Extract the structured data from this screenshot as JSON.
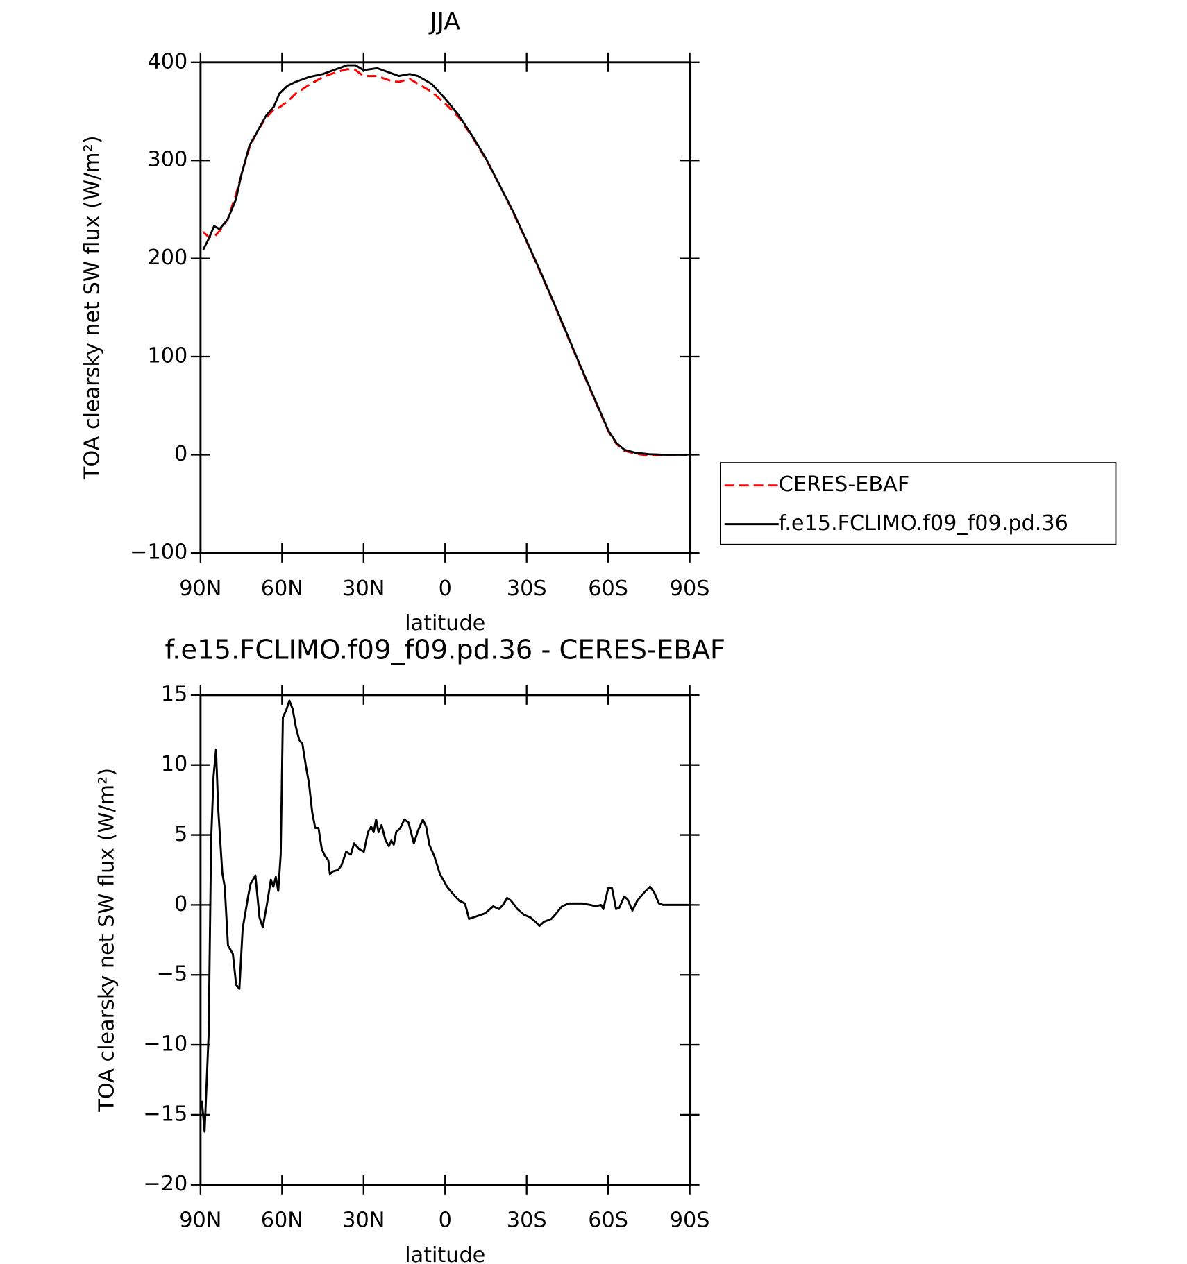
{
  "chart_data": [
    {
      "type": "line",
      "title": "JJA",
      "xlabel": "latitude",
      "ylabel": "TOA clearsky net SW flux (W/m²)",
      "x": [
        89,
        87,
        85,
        83,
        80,
        77,
        75,
        72,
        69,
        66,
        63,
        61,
        58,
        55,
        50,
        45,
        40,
        36,
        33,
        30,
        25,
        20,
        17,
        13,
        10,
        5,
        0,
        -5,
        -10,
        -15,
        -20,
        -25,
        -30,
        -35,
        -40,
        -45,
        -50,
        -55,
        -60,
        -63,
        -66,
        -70,
        -75,
        -80,
        -89
      ],
      "series": [
        {
          "name": "CERES-EBAF",
          "color": "#ff0000",
          "dashed": true,
          "values": [
            227,
            222,
            222,
            228,
            240,
            265,
            285,
            313,
            330,
            343,
            352,
            354,
            360,
            368,
            377,
            385,
            390,
            393,
            392,
            386,
            386,
            381,
            380,
            383,
            378,
            370,
            358,
            344,
            324,
            301,
            275,
            247,
            217,
            186,
            154,
            121,
            88,
            56,
            24,
            11,
            4,
            1,
            -1,
            0,
            0
          ]
        },
        {
          "name": "f.e15.FCLIMO.f09_f09.pd.36",
          "color": "#000000",
          "dashed": false,
          "values": [
            209,
            220,
            233,
            230,
            240,
            260,
            285,
            315,
            330,
            345,
            355,
            368,
            376,
            380,
            385,
            388,
            393,
            397,
            397,
            392,
            394,
            389,
            386,
            388,
            386,
            378,
            363,
            346,
            325,
            302,
            275,
            248,
            218,
            187,
            155,
            122,
            89,
            57,
            25,
            12,
            5,
            2,
            0.5,
            0,
            0
          ]
        }
      ],
      "xlim": [
        90,
        -90
      ],
      "xticks": [
        {
          "value": 90,
          "label": "90N"
        },
        {
          "value": 60,
          "label": "60N"
        },
        {
          "value": 30,
          "label": "30N"
        },
        0,
        {
          "value": -30,
          "label": "30S"
        },
        {
          "value": -60,
          "label": "60S"
        },
        {
          "value": -90,
          "label": "90S"
        }
      ],
      "ylim": [
        -100,
        400
      ],
      "yticks": [
        {
          "value": -100,
          "label": "−100"
        },
        0,
        100,
        200,
        300,
        400
      ],
      "legend": "right"
    },
    {
      "type": "line",
      "title": "f.e15.FCLIMO.f09_f09.pd.36 - CERES-EBAF",
      "xlabel": "latitude",
      "ylabel": "TOA clearsky net SW flux (W/m²)",
      "x": [
        89.5,
        88.5,
        87,
        86.1,
        85.2,
        84.3,
        83.5,
        82,
        81.1,
        79.9,
        78.1,
        76.9,
        75.7,
        74.5,
        72.4,
        71.6,
        69.8,
        68.3,
        67.1,
        65.6,
        64.1,
        63.2,
        62.3,
        61.4,
        60.5,
        59.7,
        58.5,
        57.3,
        56.1,
        54.9,
        53.7,
        52.5,
        51.3,
        50.1,
        48.9,
        47.8,
        46.6,
        45.4,
        44.2,
        43,
        42.4,
        41.2,
        39.4,
        38.2,
        36.4,
        34.7,
        33.5,
        31.7,
        29.9,
        28.4,
        27.2,
        26.3,
        25.4,
        24.5,
        23.4,
        21.9,
        20.7,
        19.8,
        18.9,
        18,
        16.5,
        15,
        13.5,
        11.5,
        10,
        8.2,
        7,
        5.8,
        4,
        1.9,
        0.4,
        -0.7,
        -3.7,
        -5.2,
        -7.3,
        -8.8,
        -11.8,
        -14.7,
        -16.5,
        -17.7,
        -19.8,
        -21.3,
        -22.8,
        -24.3,
        -26.6,
        -29,
        -31.4,
        -33.2,
        -34.7,
        -36.4,
        -39.1,
        -40.9,
        -43,
        -45.4,
        -48.1,
        -50.4,
        -53.4,
        -55.5,
        -57.3,
        -58.2,
        -60,
        -61.4,
        -62.9,
        -64.1,
        -65.9,
        -67.1,
        -68.9,
        -70.7,
        -73.3,
        -75.4,
        -76.9,
        -78.7,
        -80.2,
        -89.5
      ],
      "values": [
        -14,
        -16.2,
        -9.2,
        4.6,
        9.2,
        11.1,
        6.9,
        2.3,
        1.3,
        -2.9,
        -3.5,
        -5.7,
        -6,
        -1.7,
        0.7,
        1.5,
        2.1,
        -0.9,
        -1.6,
        0,
        1.8,
        1.3,
        2,
        1,
        3.6,
        13.4,
        13.9,
        14.6,
        14,
        12.7,
        11.8,
        11.5,
        10,
        8.7,
        6.6,
        5.5,
        5.5,
        4,
        3.5,
        3.2,
        2.2,
        2.4,
        2.5,
        2.8,
        3.8,
        3.6,
        4.4,
        4,
        3.8,
        5.2,
        5.6,
        5.2,
        6.1,
        5.2,
        5.7,
        4.6,
        4.2,
        4.6,
        4.3,
        5.2,
        5.5,
        6.1,
        5.9,
        4.4,
        5.3,
        6.1,
        5.6,
        4.3,
        3.5,
        2.2,
        1.7,
        1.3,
        0.6,
        0.3,
        0.1,
        -1,
        -0.8,
        -0.6,
        -0.3,
        -0.1,
        -0.3,
        0,
        0.5,
        0.3,
        -0.3,
        -0.7,
        -0.9,
        -1.2,
        -1.5,
        -1.2,
        -1,
        -0.6,
        -0.1,
        0.1,
        0.1,
        0.1,
        0,
        -0.1,
        0,
        -0.3,
        1.2,
        1.2,
        -0.3,
        -0.2,
        0.6,
        0.4,
        -0.4,
        0.3,
        0.9,
        1.3,
        0.9,
        0.1,
        0,
        0
      ],
      "color": "#000000",
      "xlim": [
        90,
        -90
      ],
      "xticks": [
        {
          "value": 90,
          "label": "90N"
        },
        {
          "value": 60,
          "label": "60N"
        },
        {
          "value": 30,
          "label": "30N"
        },
        0,
        {
          "value": -30,
          "label": "30S"
        },
        {
          "value": -60,
          "label": "60S"
        },
        {
          "value": -90,
          "label": "90S"
        }
      ],
      "ylim": [
        -20,
        15
      ],
      "yticks": [
        {
          "value": -20,
          "label": "−20"
        },
        {
          "value": -15,
          "label": "−15"
        },
        {
          "value": -10,
          "label": "−10"
        },
        {
          "value": -5,
          "label": "−5"
        },
        0,
        5,
        10,
        15
      ]
    }
  ]
}
